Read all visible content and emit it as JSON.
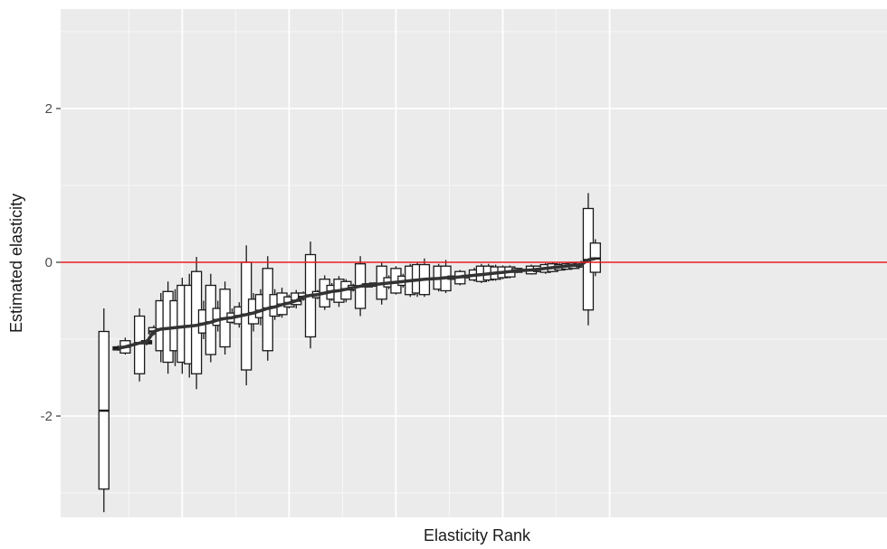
{
  "chart_data": {
    "type": "boxplot",
    "title": "",
    "xlabel": "Elasticity Rank",
    "ylabel": "Estimated elasticity",
    "ylim": [
      -3.3,
      3.3
    ],
    "xlim": [
      0,
      76
    ],
    "y_ticks": [
      -2,
      0,
      2
    ],
    "y_tick_labels": [
      "-2",
      "0",
      "2"
    ],
    "x_ticks": [],
    "grid": true,
    "reference_line": {
      "y": 0,
      "color": "#e41a1c"
    },
    "colors": {
      "panel": "#ebebeb",
      "grid": "#ffffff",
      "box_fill": "#ffffff",
      "box_stroke": "#1a1a1a",
      "trend": "#333333"
    },
    "boxes": [
      {
        "x": 4,
        "lo": -3.25,
        "q1": -2.95,
        "med": -1.93,
        "q3": -0.9,
        "hi": -0.6
      },
      {
        "x": 6,
        "lo": -1.15,
        "q1": -1.14,
        "med": -1.12,
        "q3": -1.1,
        "hi": -1.08
      },
      {
        "x": 7,
        "lo": -1.2,
        "q1": -1.18,
        "med": -1.1,
        "q3": -1.02,
        "hi": -0.98
      },
      {
        "x": 9,
        "lo": -1.55,
        "q1": -1.45,
        "med": -1.05,
        "q3": -0.7,
        "hi": -0.6
      },
      {
        "x": 10,
        "lo": -1.08,
        "q1": -1.06,
        "med": -1.04,
        "q3": -1.02,
        "hi": -1.0
      },
      {
        "x": 11,
        "lo": -0.95,
        "q1": -0.93,
        "med": -0.9,
        "q3": -0.85,
        "hi": -0.82
      },
      {
        "x": 12,
        "lo": -1.3,
        "q1": -1.15,
        "med": -0.87,
        "q3": -0.5,
        "hi": -0.4
      },
      {
        "x": 13,
        "lo": -1.45,
        "q1": -1.3,
        "med": -0.86,
        "q3": -0.38,
        "hi": -0.25
      },
      {
        "x": 14,
        "lo": -1.35,
        "q1": -1.15,
        "med": -0.85,
        "q3": -0.5,
        "hi": -0.35
      },
      {
        "x": 15,
        "lo": -1.45,
        "q1": -1.3,
        "med": -0.84,
        "q3": -0.3,
        "hi": -0.2
      },
      {
        "x": 16,
        "lo": -1.5,
        "q1": -1.32,
        "med": -0.83,
        "q3": -0.3,
        "hi": -0.15
      },
      {
        "x": 17,
        "lo": -1.65,
        "q1": -1.45,
        "med": -0.82,
        "q3": -0.12,
        "hi": 0.07
      },
      {
        "x": 18,
        "lo": -1.0,
        "q1": -0.92,
        "med": -0.8,
        "q3": -0.62,
        "hi": -0.5
      },
      {
        "x": 19,
        "lo": -1.3,
        "q1": -1.2,
        "med": -0.78,
        "q3": -0.3,
        "hi": -0.15
      },
      {
        "x": 20,
        "lo": -0.9,
        "q1": -0.82,
        "med": -0.75,
        "q3": -0.6,
        "hi": -0.5
      },
      {
        "x": 21,
        "lo": -1.2,
        "q1": -1.1,
        "med": -0.73,
        "q3": -0.35,
        "hi": -0.25
      },
      {
        "x": 22,
        "lo": -0.8,
        "q1": -0.78,
        "med": -0.72,
        "q3": -0.66,
        "hi": -0.6
      },
      {
        "x": 23,
        "lo": -0.85,
        "q1": -0.8,
        "med": -0.7,
        "q3": -0.58,
        "hi": -0.52
      },
      {
        "x": 24,
        "lo": -1.6,
        "q1": -1.4,
        "med": -0.68,
        "q3": 0.0,
        "hi": 0.22
      },
      {
        "x": 25,
        "lo": -0.9,
        "q1": -0.8,
        "med": -0.66,
        "q3": -0.48,
        "hi": -0.4
      },
      {
        "x": 26,
        "lo": -0.82,
        "q1": -0.72,
        "med": -0.63,
        "q3": -0.42,
        "hi": -0.35
      },
      {
        "x": 27,
        "lo": -1.28,
        "q1": -1.15,
        "med": -0.6,
        "q3": -0.08,
        "hi": 0.08
      },
      {
        "x": 28,
        "lo": -0.75,
        "q1": -0.7,
        "med": -0.58,
        "q3": -0.42,
        "hi": -0.35
      },
      {
        "x": 29,
        "lo": -0.72,
        "q1": -0.68,
        "med": -0.55,
        "q3": -0.4,
        "hi": -0.33
      },
      {
        "x": 30,
        "lo": -0.6,
        "q1": -0.58,
        "med": -0.53,
        "q3": -0.45,
        "hi": -0.42
      },
      {
        "x": 31,
        "lo": -0.6,
        "q1": -0.55,
        "med": -0.5,
        "q3": -0.4,
        "hi": -0.36
      },
      {
        "x": 32,
        "lo": -0.5,
        "q1": -0.48,
        "med": -0.45,
        "q3": -0.4,
        "hi": -0.38
      },
      {
        "x": 33,
        "lo": -1.12,
        "q1": -0.97,
        "med": -0.43,
        "q3": 0.1,
        "hi": 0.27
      },
      {
        "x": 34,
        "lo": -0.48,
        "q1": -0.46,
        "med": -0.42,
        "q3": -0.38,
        "hi": -0.36
      },
      {
        "x": 35,
        "lo": -0.62,
        "q1": -0.58,
        "med": -0.4,
        "q3": -0.22,
        "hi": -0.17
      },
      {
        "x": 36,
        "lo": -0.5,
        "q1": -0.48,
        "med": -0.38,
        "q3": -0.3,
        "hi": -0.27
      },
      {
        "x": 37,
        "lo": -0.58,
        "q1": -0.52,
        "med": -0.37,
        "q3": -0.22,
        "hi": -0.18
      },
      {
        "x": 38,
        "lo": -0.52,
        "q1": -0.48,
        "med": -0.35,
        "q3": -0.25,
        "hi": -0.22
      },
      {
        "x": 39,
        "lo": -0.38,
        "q1": -0.36,
        "med": -0.33,
        "q3": -0.3,
        "hi": -0.28
      },
      {
        "x": 40,
        "lo": -0.7,
        "q1": -0.6,
        "med": -0.31,
        "q3": -0.02,
        "hi": 0.08
      },
      {
        "x": 41,
        "lo": -0.33,
        "q1": -0.32,
        "med": -0.3,
        "q3": -0.28,
        "hi": -0.27
      },
      {
        "x": 42,
        "lo": -0.32,
        "q1": -0.31,
        "med": -0.29,
        "q3": -0.27,
        "hi": -0.26
      },
      {
        "x": 43,
        "lo": -0.55,
        "q1": -0.48,
        "med": -0.28,
        "q3": -0.05,
        "hi": 0.0
      },
      {
        "x": 44,
        "lo": -0.35,
        "q1": -0.32,
        "med": -0.27,
        "q3": -0.2,
        "hi": -0.17
      },
      {
        "x": 45,
        "lo": -0.42,
        "q1": -0.4,
        "med": -0.26,
        "q3": -0.08,
        "hi": -0.05
      },
      {
        "x": 46,
        "lo": -0.33,
        "q1": -0.3,
        "med": -0.25,
        "q3": -0.18,
        "hi": -0.15
      },
      {
        "x": 47,
        "lo": -0.45,
        "q1": -0.42,
        "med": -0.24,
        "q3": -0.05,
        "hi": -0.02
      },
      {
        "x": 48,
        "lo": -0.45,
        "q1": -0.4,
        "med": -0.23,
        "q3": -0.03,
        "hi": 0.0
      },
      {
        "x": 49,
        "lo": -0.45,
        "q1": -0.42,
        "med": -0.22,
        "q3": -0.03,
        "hi": 0.05
      },
      {
        "x": 51,
        "lo": -0.38,
        "q1": -0.35,
        "med": -0.21,
        "q3": -0.05,
        "hi": -0.02
      },
      {
        "x": 52,
        "lo": -0.4,
        "q1": -0.37,
        "med": -0.2,
        "q3": -0.05,
        "hi": 0.03
      },
      {
        "x": 53,
        "lo": -0.23,
        "q1": -0.22,
        "med": -0.2,
        "q3": -0.18,
        "hi": -0.17
      },
      {
        "x": 54,
        "lo": -0.3,
        "q1": -0.28,
        "med": -0.19,
        "q3": -0.12,
        "hi": -0.1
      },
      {
        "x": 55,
        "lo": -0.21,
        "q1": -0.2,
        "med": -0.18,
        "q3": -0.17,
        "hi": -0.16
      },
      {
        "x": 56,
        "lo": -0.25,
        "q1": -0.23,
        "med": -0.17,
        "q3": -0.1,
        "hi": -0.07
      },
      {
        "x": 57,
        "lo": -0.27,
        "q1": -0.25,
        "med": -0.16,
        "q3": -0.05,
        "hi": -0.02
      },
      {
        "x": 58,
        "lo": -0.25,
        "q1": -0.23,
        "med": -0.15,
        "q3": -0.05,
        "hi": -0.02
      },
      {
        "x": 59,
        "lo": -0.24,
        "q1": -0.22,
        "med": -0.14,
        "q3": -0.06,
        "hi": -0.03
      },
      {
        "x": 60,
        "lo": -0.22,
        "q1": -0.2,
        "med": -0.13,
        "q3": -0.06,
        "hi": -0.04
      },
      {
        "x": 61,
        "lo": -0.21,
        "q1": -0.19,
        "med": -0.12,
        "q3": -0.06,
        "hi": -0.04
      },
      {
        "x": 62,
        "lo": -0.14,
        "q1": -0.13,
        "med": -0.11,
        "q3": -0.08,
        "hi": -0.07
      },
      {
        "x": 64,
        "lo": -0.16,
        "q1": -0.15,
        "med": -0.1,
        "q3": -0.05,
        "hi": -0.03
      },
      {
        "x": 65,
        "lo": -0.13,
        "q1": -0.12,
        "med": -0.09,
        "q3": -0.05,
        "hi": -0.04
      },
      {
        "x": 66,
        "lo": -0.15,
        "q1": -0.13,
        "med": -0.08,
        "q3": -0.03,
        "hi": -0.01
      },
      {
        "x": 67,
        "lo": -0.13,
        "q1": -0.12,
        "med": -0.07,
        "q3": -0.02,
        "hi": 0.0
      },
      {
        "x": 68,
        "lo": -0.11,
        "q1": -0.1,
        "med": -0.06,
        "q3": -0.03,
        "hi": -0.01
      },
      {
        "x": 69,
        "lo": -0.1,
        "q1": -0.09,
        "med": -0.05,
        "q3": -0.02,
        "hi": 0.0
      },
      {
        "x": 70,
        "lo": -0.09,
        "q1": -0.08,
        "med": -0.04,
        "q3": -0.01,
        "hi": 0.0
      },
      {
        "x": 71,
        "lo": -0.07,
        "q1": -0.06,
        "med": -0.03,
        "q3": 0.0,
        "hi": 0.02
      },
      {
        "x": 72,
        "lo": -0.82,
        "q1": -0.62,
        "med": 0.03,
        "q3": 0.7,
        "hi": 0.9
      },
      {
        "x": 73,
        "lo": -0.18,
        "q1": -0.13,
        "med": 0.05,
        "q3": 0.25,
        "hi": 0.3
      }
    ]
  }
}
